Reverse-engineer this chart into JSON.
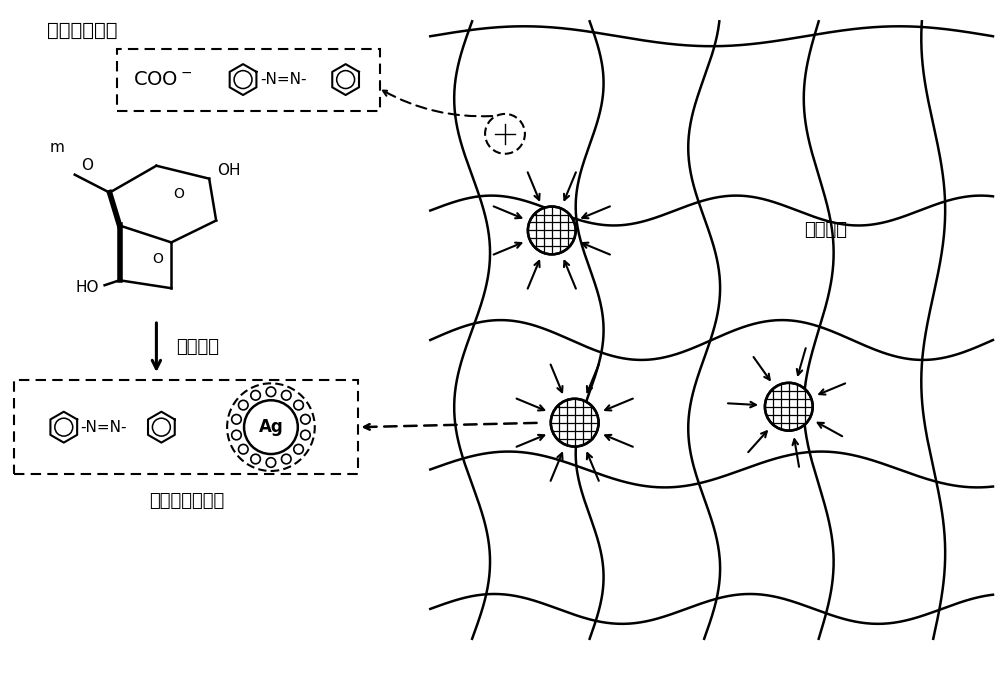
{
  "bg_color": "#ffffff",
  "title_top_left": "高分子水凝胶",
  "title_bottom_left": "光催化反应体系",
  "label_network": "网络结构",
  "label_arrow_mid": "协同传质",
  "text_ag": "Ag",
  "figsize": [
    10.0,
    6.85
  ],
  "dpi": 100
}
